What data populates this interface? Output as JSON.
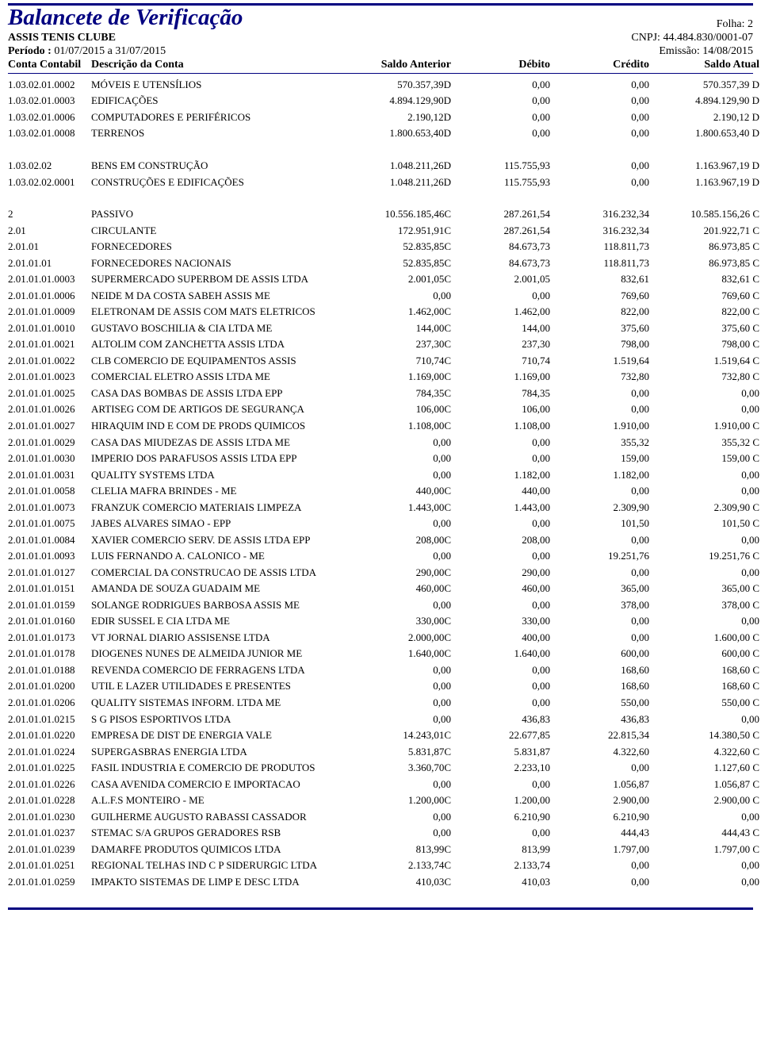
{
  "colors": {
    "rule": "#000080",
    "text": "#000000",
    "background": "#ffffff"
  },
  "fonts": {
    "family": "Times New Roman",
    "title_size_pt": 22,
    "header_size_pt": 11,
    "body_size_pt": 10
  },
  "header": {
    "title": "Balancete de Verificação",
    "folha_label": "Folha:",
    "folha_num": "2",
    "org": "ASSIS TENIS CLUBE",
    "cnpj": "CNPJ: 44.484.830/0001-07",
    "periodo_label": "Período :",
    "periodo_value": "01/07/2015 a 31/07/2015",
    "emissao": "Emissão: 14/08/2015"
  },
  "columns": {
    "c1": "Conta Contabil",
    "c2": "Descrição da Conta",
    "c3": "Saldo Anterior",
    "c4": "Débito",
    "c5": "Crédito",
    "c6": "Saldo Atual"
  },
  "sections": [
    {
      "rows": [
        {
          "code": "1.03.02.01.0002",
          "desc": "MÓVEIS E UTENSÍLIOS",
          "sa": "570.357,39D",
          "db": "0,00",
          "cr": "0,00",
          "sat": "570.357,39 D"
        },
        {
          "code": "1.03.02.01.0003",
          "desc": "EDIFICAÇÕES",
          "sa": "4.894.129,90D",
          "db": "0,00",
          "cr": "0,00",
          "sat": "4.894.129,90 D"
        },
        {
          "code": "1.03.02.01.0006",
          "desc": "COMPUTADORES E PERIFÉRICOS",
          "sa": "2.190,12D",
          "db": "0,00",
          "cr": "0,00",
          "sat": "2.190,12 D"
        },
        {
          "code": "1.03.02.01.0008",
          "desc": "TERRENOS",
          "sa": "1.800.653,40D",
          "db": "0,00",
          "cr": "0,00",
          "sat": "1.800.653,40 D"
        }
      ]
    },
    {
      "rows": [
        {
          "code": "1.03.02.02",
          "desc": "BENS EM CONSTRUÇÃO",
          "sa": "1.048.211,26D",
          "db": "115.755,93",
          "cr": "0,00",
          "sat": "1.163.967,19 D"
        },
        {
          "code": "1.03.02.02.0001",
          "desc": "CONSTRUÇÕES E EDIFICAÇÕES",
          "sa": "1.048.211,26D",
          "db": "115.755,93",
          "cr": "0,00",
          "sat": "1.163.967,19 D"
        }
      ]
    },
    {
      "rows": [
        {
          "code": "2",
          "desc": "PASSIVO",
          "sa": "10.556.185,46C",
          "db": "287.261,54",
          "cr": "316.232,34",
          "sat": "10.585.156,26 C"
        },
        {
          "code": "2.01",
          "desc": "CIRCULANTE",
          "sa": "172.951,91C",
          "db": "287.261,54",
          "cr": "316.232,34",
          "sat": "201.922,71 C"
        },
        {
          "code": "2.01.01",
          "desc": "FORNECEDORES",
          "sa": "52.835,85C",
          "db": "84.673,73",
          "cr": "118.811,73",
          "sat": "86.973,85 C"
        },
        {
          "code": "2.01.01.01",
          "desc": "FORNECEDORES NACIONAIS",
          "sa": "52.835,85C",
          "db": "84.673,73",
          "cr": "118.811,73",
          "sat": "86.973,85 C"
        },
        {
          "code": "2.01.01.01.0003",
          "desc": "SUPERMERCADO SUPERBOM DE ASSIS LTDA",
          "sa": "2.001,05C",
          "db": "2.001,05",
          "cr": "832,61",
          "sat": "832,61 C"
        },
        {
          "code": "2.01.01.01.0006",
          "desc": "NEIDE M DA COSTA SABEH ASSIS ME",
          "sa": "0,00",
          "db": "0,00",
          "cr": "769,60",
          "sat": "769,60 C"
        },
        {
          "code": "2.01.01.01.0009",
          "desc": "ELETRONAM DE ASSIS COM MATS ELETRICOS",
          "sa": "1.462,00C",
          "db": "1.462,00",
          "cr": "822,00",
          "sat": "822,00 C"
        },
        {
          "code": "2.01.01.01.0010",
          "desc": "GUSTAVO BOSCHILIA & CIA LTDA ME",
          "sa": "144,00C",
          "db": "144,00",
          "cr": "375,60",
          "sat": "375,60 C"
        },
        {
          "code": "2.01.01.01.0021",
          "desc": "ALTOLIM COM ZANCHETTA ASSIS LTDA",
          "sa": "237,30C",
          "db": "237,30",
          "cr": "798,00",
          "sat": "798,00 C"
        },
        {
          "code": "2.01.01.01.0022",
          "desc": "CLB COMERCIO DE EQUIPAMENTOS ASSIS",
          "sa": "710,74C",
          "db": "710,74",
          "cr": "1.519,64",
          "sat": "1.519,64 C"
        },
        {
          "code": "2.01.01.01.0023",
          "desc": "COMERCIAL ELETRO ASSIS LTDA ME",
          "sa": "1.169,00C",
          "db": "1.169,00",
          "cr": "732,80",
          "sat": "732,80 C"
        },
        {
          "code": "2.01.01.01.0025",
          "desc": "CASA DAS BOMBAS DE ASSIS LTDA EPP",
          "sa": "784,35C",
          "db": "784,35",
          "cr": "0,00",
          "sat": "0,00"
        },
        {
          "code": "2.01.01.01.0026",
          "desc": "ARTISEG COM DE ARTIGOS DE SEGURANÇA",
          "sa": "106,00C",
          "db": "106,00",
          "cr": "0,00",
          "sat": "0,00"
        },
        {
          "code": "2.01.01.01.0027",
          "desc": "HIRAQUIM IND E COM DE PRODS QUIMICOS",
          "sa": "1.108,00C",
          "db": "1.108,00",
          "cr": "1.910,00",
          "sat": "1.910,00 C"
        },
        {
          "code": "2.01.01.01.0029",
          "desc": "CASA DAS MIUDEZAS DE ASSIS LTDA ME",
          "sa": "0,00",
          "db": "0,00",
          "cr": "355,32",
          "sat": "355,32 C"
        },
        {
          "code": "2.01.01.01.0030",
          "desc": "IMPERIO DOS PARAFUSOS ASSIS LTDA EPP",
          "sa": "0,00",
          "db": "0,00",
          "cr": "159,00",
          "sat": "159,00 C"
        },
        {
          "code": "2.01.01.01.0031",
          "desc": "QUALITY SYSTEMS LTDA",
          "sa": "0,00",
          "db": "1.182,00",
          "cr": "1.182,00",
          "sat": "0,00"
        },
        {
          "code": "2.01.01.01.0058",
          "desc": "CLELIA MAFRA BRINDES - ME",
          "sa": "440,00C",
          "db": "440,00",
          "cr": "0,00",
          "sat": "0,00"
        },
        {
          "code": "2.01.01.01.0073",
          "desc": "FRANZUK COMERCIO MATERIAIS LIMPEZA",
          "sa": "1.443,00C",
          "db": "1.443,00",
          "cr": "2.309,90",
          "sat": "2.309,90 C"
        },
        {
          "code": "2.01.01.01.0075",
          "desc": "JABES ALVARES SIMAO - EPP",
          "sa": "0,00",
          "db": "0,00",
          "cr": "101,50",
          "sat": "101,50 C"
        },
        {
          "code": "2.01.01.01.0084",
          "desc": "XAVIER COMERCIO SERV. DE ASSIS LTDA EPP",
          "sa": "208,00C",
          "db": "208,00",
          "cr": "0,00",
          "sat": "0,00"
        },
        {
          "code": "2.01.01.01.0093",
          "desc": "LUIS FERNANDO A. CALONICO - ME",
          "sa": "0,00",
          "db": "0,00",
          "cr": "19.251,76",
          "sat": "19.251,76 C"
        },
        {
          "code": "2.01.01.01.0127",
          "desc": "COMERCIAL DA CONSTRUCAO DE ASSIS LTDA",
          "sa": "290,00C",
          "db": "290,00",
          "cr": "0,00",
          "sat": "0,00"
        },
        {
          "code": "2.01.01.01.0151",
          "desc": "AMANDA DE SOUZA GUADAIM ME",
          "sa": "460,00C",
          "db": "460,00",
          "cr": "365,00",
          "sat": "365,00 C"
        },
        {
          "code": "2.01.01.01.0159",
          "desc": "SOLANGE RODRIGUES BARBOSA ASSIS ME",
          "sa": "0,00",
          "db": "0,00",
          "cr": "378,00",
          "sat": "378,00 C"
        },
        {
          "code": "2.01.01.01.0160",
          "desc": "EDIR SUSSEL E CIA LTDA ME",
          "sa": "330,00C",
          "db": "330,00",
          "cr": "0,00",
          "sat": "0,00"
        },
        {
          "code": "2.01.01.01.0173",
          "desc": "VT JORNAL DIARIO ASSISENSE LTDA",
          "sa": "2.000,00C",
          "db": "400,00",
          "cr": "0,00",
          "sat": "1.600,00 C"
        },
        {
          "code": "2.01.01.01.0178",
          "desc": "DIOGENES NUNES DE ALMEIDA JUNIOR ME",
          "sa": "1.640,00C",
          "db": "1.640,00",
          "cr": "600,00",
          "sat": "600,00 C"
        },
        {
          "code": "2.01.01.01.0188",
          "desc": "REVENDA COMERCIO DE FERRAGENS LTDA",
          "sa": "0,00",
          "db": "0,00",
          "cr": "168,60",
          "sat": "168,60 C"
        },
        {
          "code": "2.01.01.01.0200",
          "desc": "UTIL E LAZER UTILIDADES E PRESENTES",
          "sa": "0,00",
          "db": "0,00",
          "cr": "168,60",
          "sat": "168,60 C"
        },
        {
          "code": "2.01.01.01.0206",
          "desc": "QUALITY SISTEMAS INFORM. LTDA ME",
          "sa": "0,00",
          "db": "0,00",
          "cr": "550,00",
          "sat": "550,00 C"
        },
        {
          "code": "2.01.01.01.0215",
          "desc": "S G PISOS ESPORTIVOS LTDA",
          "sa": "0,00",
          "db": "436,83",
          "cr": "436,83",
          "sat": "0,00"
        },
        {
          "code": "2.01.01.01.0220",
          "desc": "EMPRESA DE DIST DE ENERGIA VALE",
          "sa": "14.243,01C",
          "db": "22.677,85",
          "cr": "22.815,34",
          "sat": "14.380,50 C"
        },
        {
          "code": "2.01.01.01.0224",
          "desc": "SUPERGASBRAS ENERGIA LTDA",
          "sa": "5.831,87C",
          "db": "5.831,87",
          "cr": "4.322,60",
          "sat": "4.322,60 C"
        },
        {
          "code": "2.01.01.01.0225",
          "desc": "FASIL INDUSTRIA E COMERCIO DE PRODUTOS",
          "sa": "3.360,70C",
          "db": "2.233,10",
          "cr": "0,00",
          "sat": "1.127,60 C"
        },
        {
          "code": "2.01.01.01.0226",
          "desc": "CASA AVENIDA COMERCIO E IMPORTACAO",
          "sa": "0,00",
          "db": "0,00",
          "cr": "1.056,87",
          "sat": "1.056,87 C"
        },
        {
          "code": "2.01.01.01.0228",
          "desc": "A.L.F.S MONTEIRO - ME",
          "sa": "1.200,00C",
          "db": "1.200,00",
          "cr": "2.900,00",
          "sat": "2.900,00 C"
        },
        {
          "code": "2.01.01.01.0230",
          "desc": "GUILHERME AUGUSTO RABASSI CASSADOR",
          "sa": "0,00",
          "db": "6.210,90",
          "cr": "6.210,90",
          "sat": "0,00"
        },
        {
          "code": "2.01.01.01.0237",
          "desc": "STEMAC S/A GRUPOS GERADORES RSB",
          "sa": "0,00",
          "db": "0,00",
          "cr": "444,43",
          "sat": "444,43 C"
        },
        {
          "code": "2.01.01.01.0239",
          "desc": "DAMARFE PRODUTOS QUIMICOS LTDA",
          "sa": "813,99C",
          "db": "813,99",
          "cr": "1.797,00",
          "sat": "1.797,00 C"
        },
        {
          "code": "2.01.01.01.0251",
          "desc": "REGIONAL TELHAS IND C P SIDERURGIC LTDA",
          "sa": "2.133,74C",
          "db": "2.133,74",
          "cr": "0,00",
          "sat": "0,00"
        },
        {
          "code": "2.01.01.01.0259",
          "desc": "IMPAKTO  SISTEMAS DE LIMP E DESC LTDA",
          "sa": "410,03C",
          "db": "410,03",
          "cr": "0,00",
          "sat": "0,00"
        }
      ]
    }
  ]
}
